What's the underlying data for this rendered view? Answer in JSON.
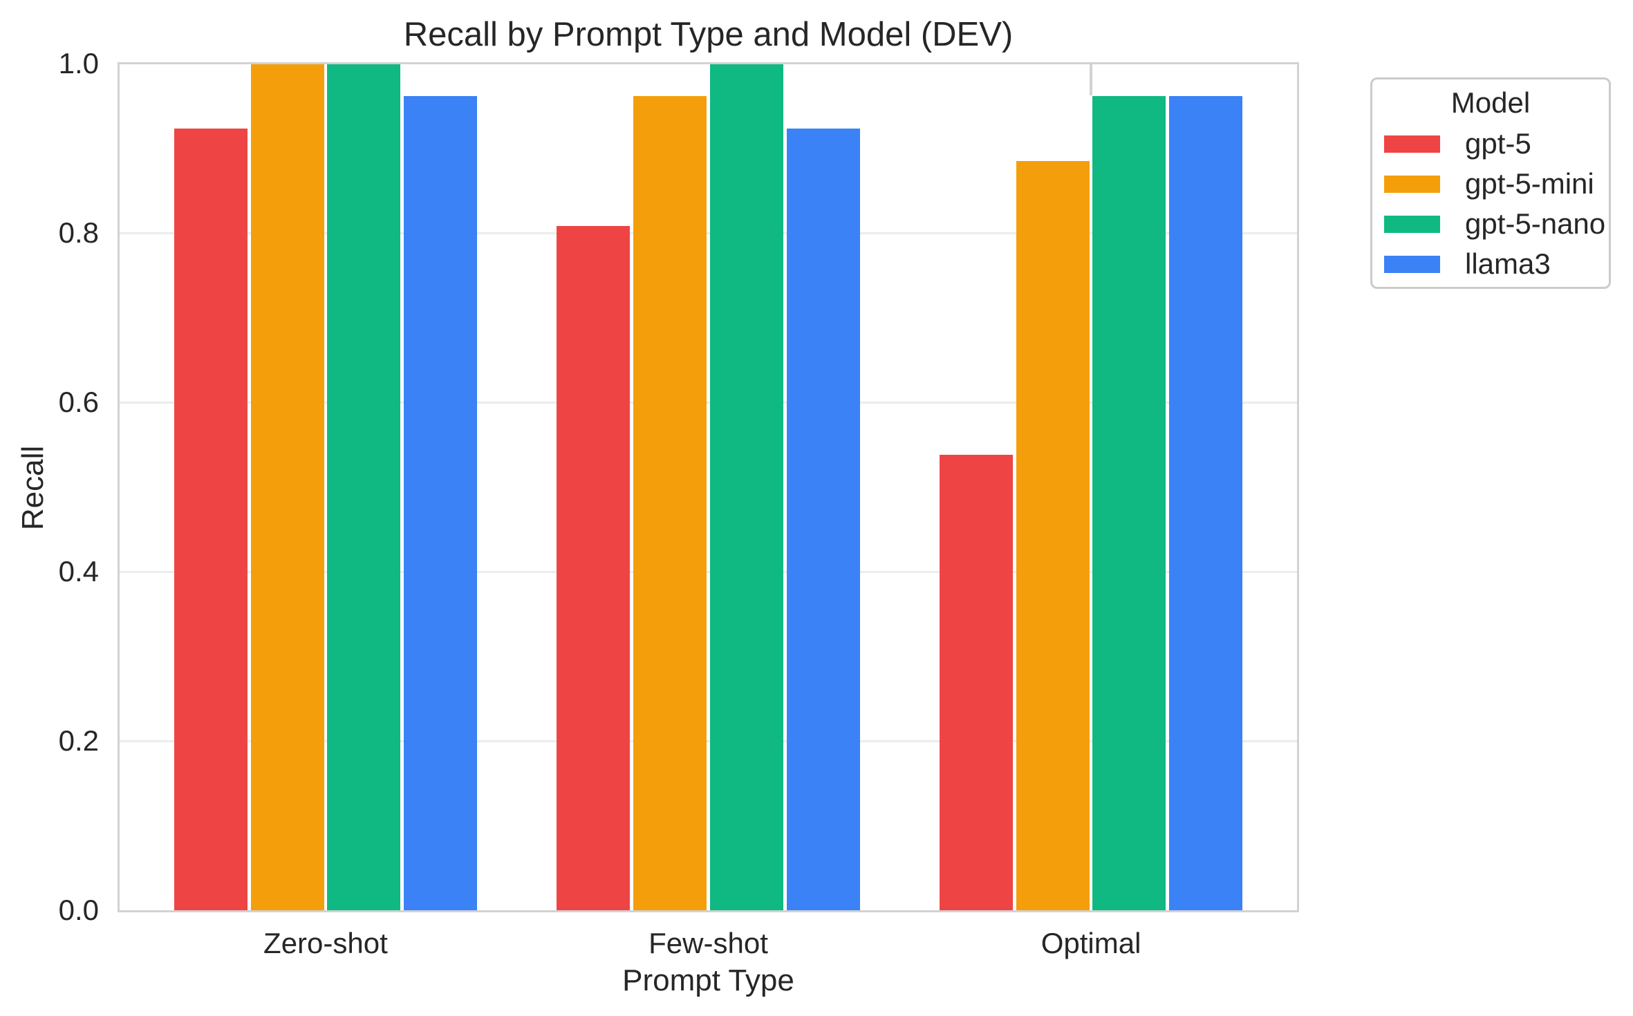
{
  "figure": {
    "title": "Recall by Prompt Type and Model (DEV)",
    "xlabel": "Prompt Type",
    "ylabel": "Recall"
  },
  "legend": {
    "title": "Model"
  },
  "chart_data": {
    "type": "bar",
    "title": "Recall by Prompt Type and Model (DEV)",
    "xlabel": "Prompt Type",
    "ylabel": "Recall",
    "categories": [
      "Zero-shot",
      "Few-shot",
      "Optimal"
    ],
    "series": [
      {
        "name": "gpt-5",
        "color": "#EF4444",
        "values": [
          0.923,
          0.808,
          0.538
        ]
      },
      {
        "name": "gpt-5-mini",
        "color": "#F59E0B",
        "values": [
          1.0,
          0.962,
          0.885
        ]
      },
      {
        "name": "gpt-5-nano",
        "color": "#10B981",
        "values": [
          1.0,
          1.0,
          0.962
        ]
      },
      {
        "name": "llama3",
        "color": "#3B82F6",
        "values": [
          0.962,
          0.923,
          0.962
        ]
      }
    ],
    "ylim": [
      0.0,
      1.0
    ],
    "yticks": [
      {
        "value": 0.0,
        "label": "0.0"
      },
      {
        "value": 0.2,
        "label": "0.2"
      },
      {
        "value": 0.4,
        "label": "0.4"
      },
      {
        "value": 0.6,
        "label": "0.6"
      },
      {
        "value": 0.8,
        "label": "0.8"
      },
      {
        "value": 1.0,
        "label": "1.0"
      }
    ],
    "grid": true,
    "legend_title": "Model",
    "legend_position": "outside-upper-right"
  },
  "colors": {
    "background": "#FFFFFF",
    "text": "#262626",
    "spine": "#D2D2D2",
    "gridline": "#ECECEC",
    "legend_border": "#CBCBCB"
  }
}
